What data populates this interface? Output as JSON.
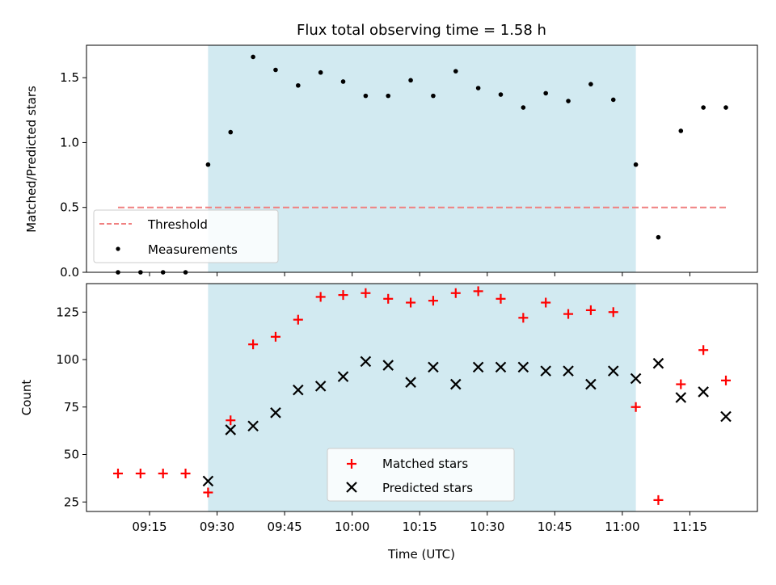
{
  "chart_data": [
    {
      "type": "scatter",
      "title": "Flux total observing time = 1.58 h",
      "xlabel": "",
      "ylabel": "Matched/Predicted stars",
      "ylim": [
        0,
        1.75
      ],
      "yticks": [
        "0.0",
        "0.5",
        "1.0",
        "1.5"
      ],
      "ytick_values": [
        0,
        0.5,
        1.0,
        1.5
      ],
      "x_minutes": [
        548,
        553,
        558,
        563,
        568,
        573,
        578,
        583,
        588,
        593,
        598,
        603,
        608,
        613,
        618,
        623,
        628,
        633,
        638,
        643,
        648,
        653,
        658,
        663,
        668,
        673,
        678,
        683
      ],
      "threshold": {
        "name": "Threshold",
        "value": 0.5,
        "x_start_minutes": 548,
        "x_end_minutes": 683,
        "color": "#f08080"
      },
      "series": [
        {
          "name": "Measurements",
          "color": "#000000",
          "marker": "dot",
          "values": [
            0.0,
            0.0,
            0.0,
            0.0,
            0.83,
            1.08,
            1.66,
            1.56,
            1.44,
            1.54,
            1.47,
            1.36,
            1.36,
            1.48,
            1.36,
            1.55,
            1.42,
            1.37,
            1.27,
            1.38,
            1.32,
            1.45,
            1.33,
            0.83,
            0.27,
            1.09,
            1.27,
            1.27
          ]
        }
      ],
      "legend": {
        "placement": "lower-left",
        "entries": [
          "Threshold",
          "Measurements"
        ]
      },
      "shaded_region": {
        "x_start_minutes": 568,
        "x_end_minutes": 663,
        "color": "#add8e6"
      }
    },
    {
      "type": "scatter",
      "title": "",
      "xlabel": "Time (UTC)",
      "ylabel": "Count",
      "ylim": [
        20,
        140
      ],
      "yticks": [
        "25",
        "50",
        "75",
        "100",
        "125"
      ],
      "ytick_values": [
        25,
        50,
        75,
        100,
        125
      ],
      "xticks": [
        "09:15",
        "09:30",
        "09:45",
        "10:00",
        "10:15",
        "10:30",
        "10:45",
        "11:00",
        "11:15"
      ],
      "xtick_minutes": [
        555,
        570,
        585,
        600,
        615,
        630,
        645,
        660,
        675
      ],
      "x_minutes": [
        548,
        553,
        558,
        563,
        568,
        573,
        578,
        583,
        588,
        593,
        598,
        603,
        608,
        613,
        618,
        623,
        628,
        633,
        638,
        643,
        648,
        653,
        658,
        663,
        668,
        673,
        678,
        683
      ],
      "series": [
        {
          "name": "Matched stars",
          "color": "#ff0000",
          "marker": "plus",
          "values": [
            40,
            40,
            40,
            40,
            30,
            68,
            108,
            112,
            121,
            133,
            134,
            135,
            132,
            130,
            131,
            135,
            136,
            132,
            122,
            130,
            124,
            126,
            125,
            75,
            26,
            87,
            105,
            89
          ]
        },
        {
          "name": "Predicted stars",
          "color": "#000000",
          "marker": "x",
          "values": [
            null,
            null,
            null,
            null,
            36,
            63,
            65,
            72,
            84,
            86,
            91,
            99,
            97,
            88,
            96,
            87,
            96,
            96,
            96,
            94,
            94,
            87,
            94,
            90,
            98,
            80,
            83,
            70
          ]
        }
      ],
      "legend": {
        "placement": "lower-center",
        "entries": [
          "Matched stars",
          "Predicted stars"
        ]
      },
      "shaded_region": {
        "x_start_minutes": 568,
        "x_end_minutes": 663,
        "color": "#add8e6"
      }
    }
  ]
}
